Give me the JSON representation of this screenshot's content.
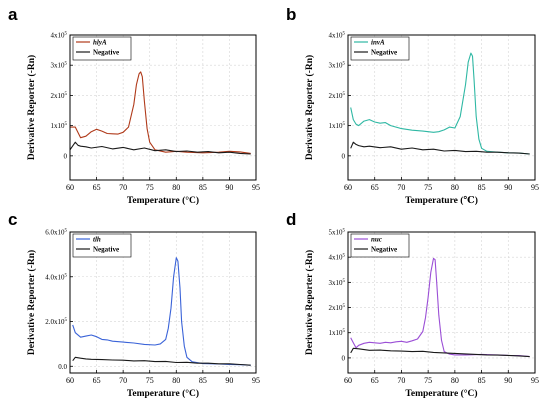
{
  "chart_data": [
    {
      "type": "line",
      "panel": "a",
      "xlabel": "Temperature (°C)",
      "ylabel": "Derivative Reporter (-Rn)",
      "xlim": [
        60,
        95
      ],
      "xticks": [
        60,
        65,
        70,
        75,
        80,
        85,
        90,
        95
      ],
      "ylim": [
        -80000,
        400000
      ],
      "yticks": [
        {
          "v": 0,
          "label": "0"
        },
        {
          "v": 100000,
          "label": "1x10",
          "exp": "5"
        },
        {
          "v": 200000,
          "label": "2x10",
          "exp": "5"
        },
        {
          "v": 300000,
          "label": "3x10",
          "exp": "5"
        },
        {
          "v": 400000,
          "label": "4x10",
          "exp": "5"
        }
      ],
      "legend": "top-left",
      "grid": true,
      "series": [
        {
          "name": "hlyA",
          "color": "#b03a1a",
          "italic": true,
          "x": [
            60,
            61,
            62,
            63,
            64,
            65,
            66,
            67,
            68,
            69,
            70,
            71,
            72,
            72.5,
            73,
            73.3,
            73.6,
            74,
            74.5,
            75,
            76,
            78,
            80,
            82,
            85,
            88,
            90,
            92,
            94
          ],
          "y": [
            95000,
            95000,
            60000,
            65000,
            80000,
            88000,
            82000,
            74000,
            73000,
            72000,
            78000,
            95000,
            170000,
            235000,
            272000,
            278000,
            262000,
            180000,
            90000,
            45000,
            20000,
            12000,
            15000,
            12000,
            10000,
            12000,
            15000,
            13000,
            8000
          ]
        },
        {
          "name": "Negative",
          "color": "#1a1a1a",
          "italic": false,
          "x": [
            60,
            61,
            61.5,
            62,
            63,
            64,
            66,
            68,
            70,
            72,
            74,
            76,
            78,
            80,
            82,
            84,
            86,
            88,
            90,
            92,
            94
          ],
          "y": [
            20000,
            45000,
            35000,
            32000,
            30000,
            26000,
            31000,
            23000,
            28000,
            20000,
            26000,
            17000,
            20000,
            14000,
            16000,
            12000,
            14000,
            10000,
            12000,
            8000,
            6000
          ]
        }
      ]
    },
    {
      "type": "line",
      "panel": "b",
      "xlabel": "Temperature (℃)",
      "ylabel": "Derivative Reporter (-Rn)",
      "xlim": [
        60,
        95
      ],
      "xticks": [
        60,
        65,
        70,
        75,
        80,
        85,
        90,
        95
      ],
      "ylim": [
        -80000,
        400000
      ],
      "yticks": [
        {
          "v": 0,
          "label": "0"
        },
        {
          "v": 100000,
          "label": "1x10",
          "exp": "5"
        },
        {
          "v": 200000,
          "label": "2x10",
          "exp": "5"
        },
        {
          "v": 300000,
          "label": "3x10",
          "exp": "5"
        },
        {
          "v": 400000,
          "label": "4x10",
          "exp": "5"
        }
      ],
      "legend": "top-left",
      "grid": true,
      "series": [
        {
          "name": "invA",
          "color": "#2fb8a4",
          "italic": true,
          "x": [
            60.5,
            61,
            61.5,
            62,
            63,
            64,
            65,
            66,
            67,
            68,
            70,
            72,
            74,
            76,
            77,
            78,
            79,
            80,
            81,
            82,
            82.5,
            83,
            83.3,
            83.6,
            84,
            84.5,
            85,
            86,
            88,
            90,
            92,
            94
          ],
          "y": [
            160000,
            120000,
            105000,
            100000,
            115000,
            120000,
            112000,
            108000,
            110000,
            100000,
            90000,
            85000,
            82000,
            78000,
            80000,
            86000,
            95000,
            92000,
            130000,
            235000,
            310000,
            340000,
            330000,
            250000,
            130000,
            55000,
            25000,
            15000,
            12000,
            10000,
            9000,
            6000
          ]
        },
        {
          "name": "Negative",
          "color": "#1a1a1a",
          "italic": false,
          "x": [
            60.5,
            61,
            61.5,
            62,
            63,
            64,
            66,
            68,
            70,
            72,
            74,
            76,
            78,
            80,
            82,
            84,
            86,
            88,
            90,
            92,
            94
          ],
          "y": [
            25000,
            45000,
            38000,
            34000,
            30000,
            32000,
            27000,
            30000,
            22000,
            26000,
            20000,
            22000,
            16000,
            18000,
            14000,
            15000,
            12000,
            12000,
            10000,
            9000,
            6000
          ]
        }
      ]
    },
    {
      "type": "line",
      "panel": "c",
      "xlabel": "Temperature (°C)",
      "ylabel": "Derivative Reporter (-Rn)",
      "xlim": [
        60,
        95
      ],
      "xticks": [
        60,
        65,
        70,
        75,
        80,
        85,
        90,
        95
      ],
      "ylim": [
        -30000,
        600000
      ],
      "yticks": [
        {
          "v": 0,
          "label": "0.0"
        },
        {
          "v": 200000,
          "label": "2.0x10",
          "exp": "5"
        },
        {
          "v": 400000,
          "label": "4.0x10",
          "exp": "5"
        },
        {
          "v": 600000,
          "label": "6.0x10",
          "exp": "5"
        }
      ],
      "legend": "top-left",
      "grid": true,
      "series": [
        {
          "name": "tlh",
          "color": "#3a63d8",
          "italic": true,
          "x": [
            60.5,
            61,
            62,
            63,
            64,
            65,
            66,
            67,
            68,
            70,
            72,
            74,
            76,
            77,
            78,
            78.5,
            79,
            79.5,
            80,
            80.3,
            80.7,
            81,
            81.5,
            82,
            83,
            85,
            88,
            90,
            92,
            94
          ],
          "y": [
            185000,
            150000,
            130000,
            135000,
            140000,
            132000,
            120000,
            118000,
            112000,
            108000,
            104000,
            98000,
            95000,
            100000,
            120000,
            170000,
            260000,
            400000,
            485000,
            470000,
            350000,
            200000,
            90000,
            40000,
            20000,
            12000,
            10000,
            8000,
            7000,
            5000
          ]
        },
        {
          "name": "Negative",
          "color": "#1a1a1a",
          "italic": false,
          "x": [
            60.5,
            61,
            62,
            63,
            64,
            66,
            68,
            70,
            72,
            74,
            76,
            78,
            80,
            82,
            84,
            86,
            88,
            90,
            92,
            94
          ],
          "y": [
            25000,
            40000,
            36000,
            33000,
            31000,
            30000,
            28000,
            27000,
            24000,
            25000,
            21000,
            22000,
            17000,
            18000,
            14000,
            14000,
            11000,
            11000,
            8000,
            5000
          ]
        }
      ]
    },
    {
      "type": "line",
      "panel": "d",
      "xlabel": "Temperature (°C)",
      "ylabel": "Derivative Reporter (-Rn)",
      "xlim": [
        60,
        95
      ],
      "xticks": [
        60,
        65,
        70,
        75,
        80,
        85,
        90,
        95
      ],
      "ylim": [
        -60000,
        500000
      ],
      "yticks": [
        {
          "v": 0,
          "label": "0"
        },
        {
          "v": 100000,
          "label": "1x10",
          "exp": "5"
        },
        {
          "v": 200000,
          "label": "2x10",
          "exp": "5"
        },
        {
          "v": 300000,
          "label": "3x10",
          "exp": "5"
        },
        {
          "v": 400000,
          "label": "4x10",
          "exp": "5"
        },
        {
          "v": 500000,
          "label": "5x10",
          "exp": "5"
        }
      ],
      "legend": "top-left",
      "grid": true,
      "series": [
        {
          "name": "nuc",
          "color": "#9b4fd6",
          "italic": true,
          "x": [
            60.5,
            61,
            61.5,
            62,
            63,
            64,
            65,
            66,
            67,
            68,
            69,
            70,
            71,
            72,
            73,
            74,
            74.5,
            75,
            75.5,
            76,
            76.3,
            76.6,
            77,
            77.5,
            78,
            79,
            80,
            82,
            85,
            88,
            90,
            92,
            94
          ],
          "y": [
            80000,
            60000,
            40000,
            50000,
            58000,
            62000,
            60000,
            58000,
            62000,
            60000,
            64000,
            66000,
            62000,
            68000,
            75000,
            105000,
            160000,
            240000,
            340000,
            395000,
            390000,
            300000,
            170000,
            70000,
            25000,
            15000,
            12000,
            12000,
            14000,
            12000,
            10000,
            9000,
            5000
          ]
        },
        {
          "name": "Negative",
          "color": "#1a1a1a",
          "italic": false,
          "x": [
            60.5,
            61,
            62,
            63,
            64,
            66,
            68,
            70,
            72,
            74,
            76,
            78,
            80,
            82,
            84,
            86,
            88,
            90,
            92,
            94
          ],
          "y": [
            20000,
            38000,
            36000,
            33000,
            30000,
            31000,
            28000,
            27000,
            25000,
            26000,
            22000,
            20000,
            18000,
            16000,
            14000,
            12000,
            11000,
            10000,
            8000,
            5000
          ]
        }
      ]
    }
  ]
}
